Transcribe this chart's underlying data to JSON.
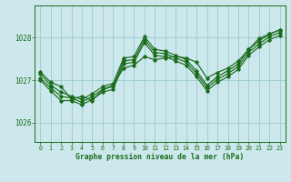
{
  "title": "Graphe pression niveau de la mer (hPa)",
  "bg_color": "#cce8ec",
  "grid_color": "#99cccc",
  "line_color": "#1a6b1a",
  "xlim": [
    -0.5,
    23.5
  ],
  "ylim": [
    1025.55,
    1028.75
  ],
  "yticks": [
    1026,
    1027,
    1028
  ],
  "xticks": [
    0,
    1,
    2,
    3,
    4,
    5,
    6,
    7,
    8,
    9,
    10,
    11,
    12,
    13,
    14,
    15,
    16,
    17,
    18,
    19,
    20,
    21,
    22,
    23
  ],
  "series": [
    [
      1027.2,
      1026.95,
      1026.85,
      1026.55,
      1026.62,
      1026.52,
      1026.78,
      1026.88,
      1027.28,
      1027.35,
      1027.55,
      1027.48,
      1027.52,
      1027.55,
      1027.52,
      1027.42,
      1027.05,
      1027.18,
      1027.28,
      1027.45,
      1027.72,
      1027.98,
      1028.08,
      1028.18
    ],
    [
      1027.15,
      1026.88,
      1026.72,
      1026.62,
      1026.55,
      1026.68,
      1026.85,
      1026.92,
      1027.52,
      1027.55,
      1028.02,
      1027.72,
      1027.68,
      1027.58,
      1027.48,
      1027.22,
      1026.88,
      1027.08,
      1027.22,
      1027.38,
      1027.72,
      1027.92,
      1028.08,
      1028.18
    ],
    [
      1027.05,
      1026.82,
      1026.62,
      1026.58,
      1026.48,
      1026.62,
      1026.78,
      1026.85,
      1027.45,
      1027.48,
      1027.95,
      1027.65,
      1027.62,
      1027.52,
      1027.42,
      1027.15,
      1026.82,
      1027.02,
      1027.15,
      1027.32,
      1027.65,
      1027.85,
      1028.02,
      1028.12
    ],
    [
      1027.0,
      1026.75,
      1026.52,
      1026.52,
      1026.42,
      1026.55,
      1026.72,
      1026.78,
      1027.38,
      1027.42,
      1027.88,
      1027.58,
      1027.55,
      1027.45,
      1027.35,
      1027.08,
      1026.75,
      1026.95,
      1027.08,
      1027.25,
      1027.58,
      1027.78,
      1027.95,
      1028.05
    ]
  ]
}
